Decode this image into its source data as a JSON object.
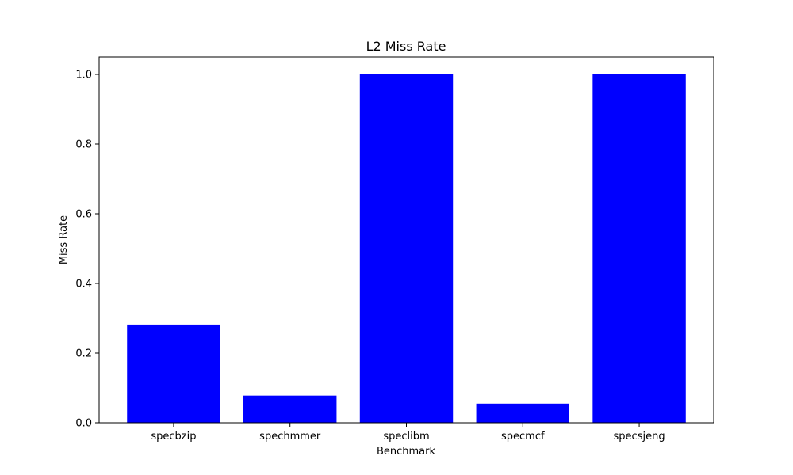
{
  "chart_data": {
    "type": "bar",
    "title": "L2 Miss Rate",
    "xlabel": "Benchmark",
    "ylabel": "Miss Rate",
    "categories": [
      "specbzip",
      "spechmmer",
      "speclibm",
      "specmcf",
      "specsjeng"
    ],
    "values": [
      0.282,
      0.078,
      1.0,
      0.055,
      1.0
    ],
    "ylim": [
      0,
      1.05
    ],
    "yticks": [
      "0.0",
      "0.2",
      "0.4",
      "0.6",
      "0.8",
      "1.0"
    ],
    "bar_color": "#0000ff",
    "grid": false,
    "legend": "none"
  }
}
